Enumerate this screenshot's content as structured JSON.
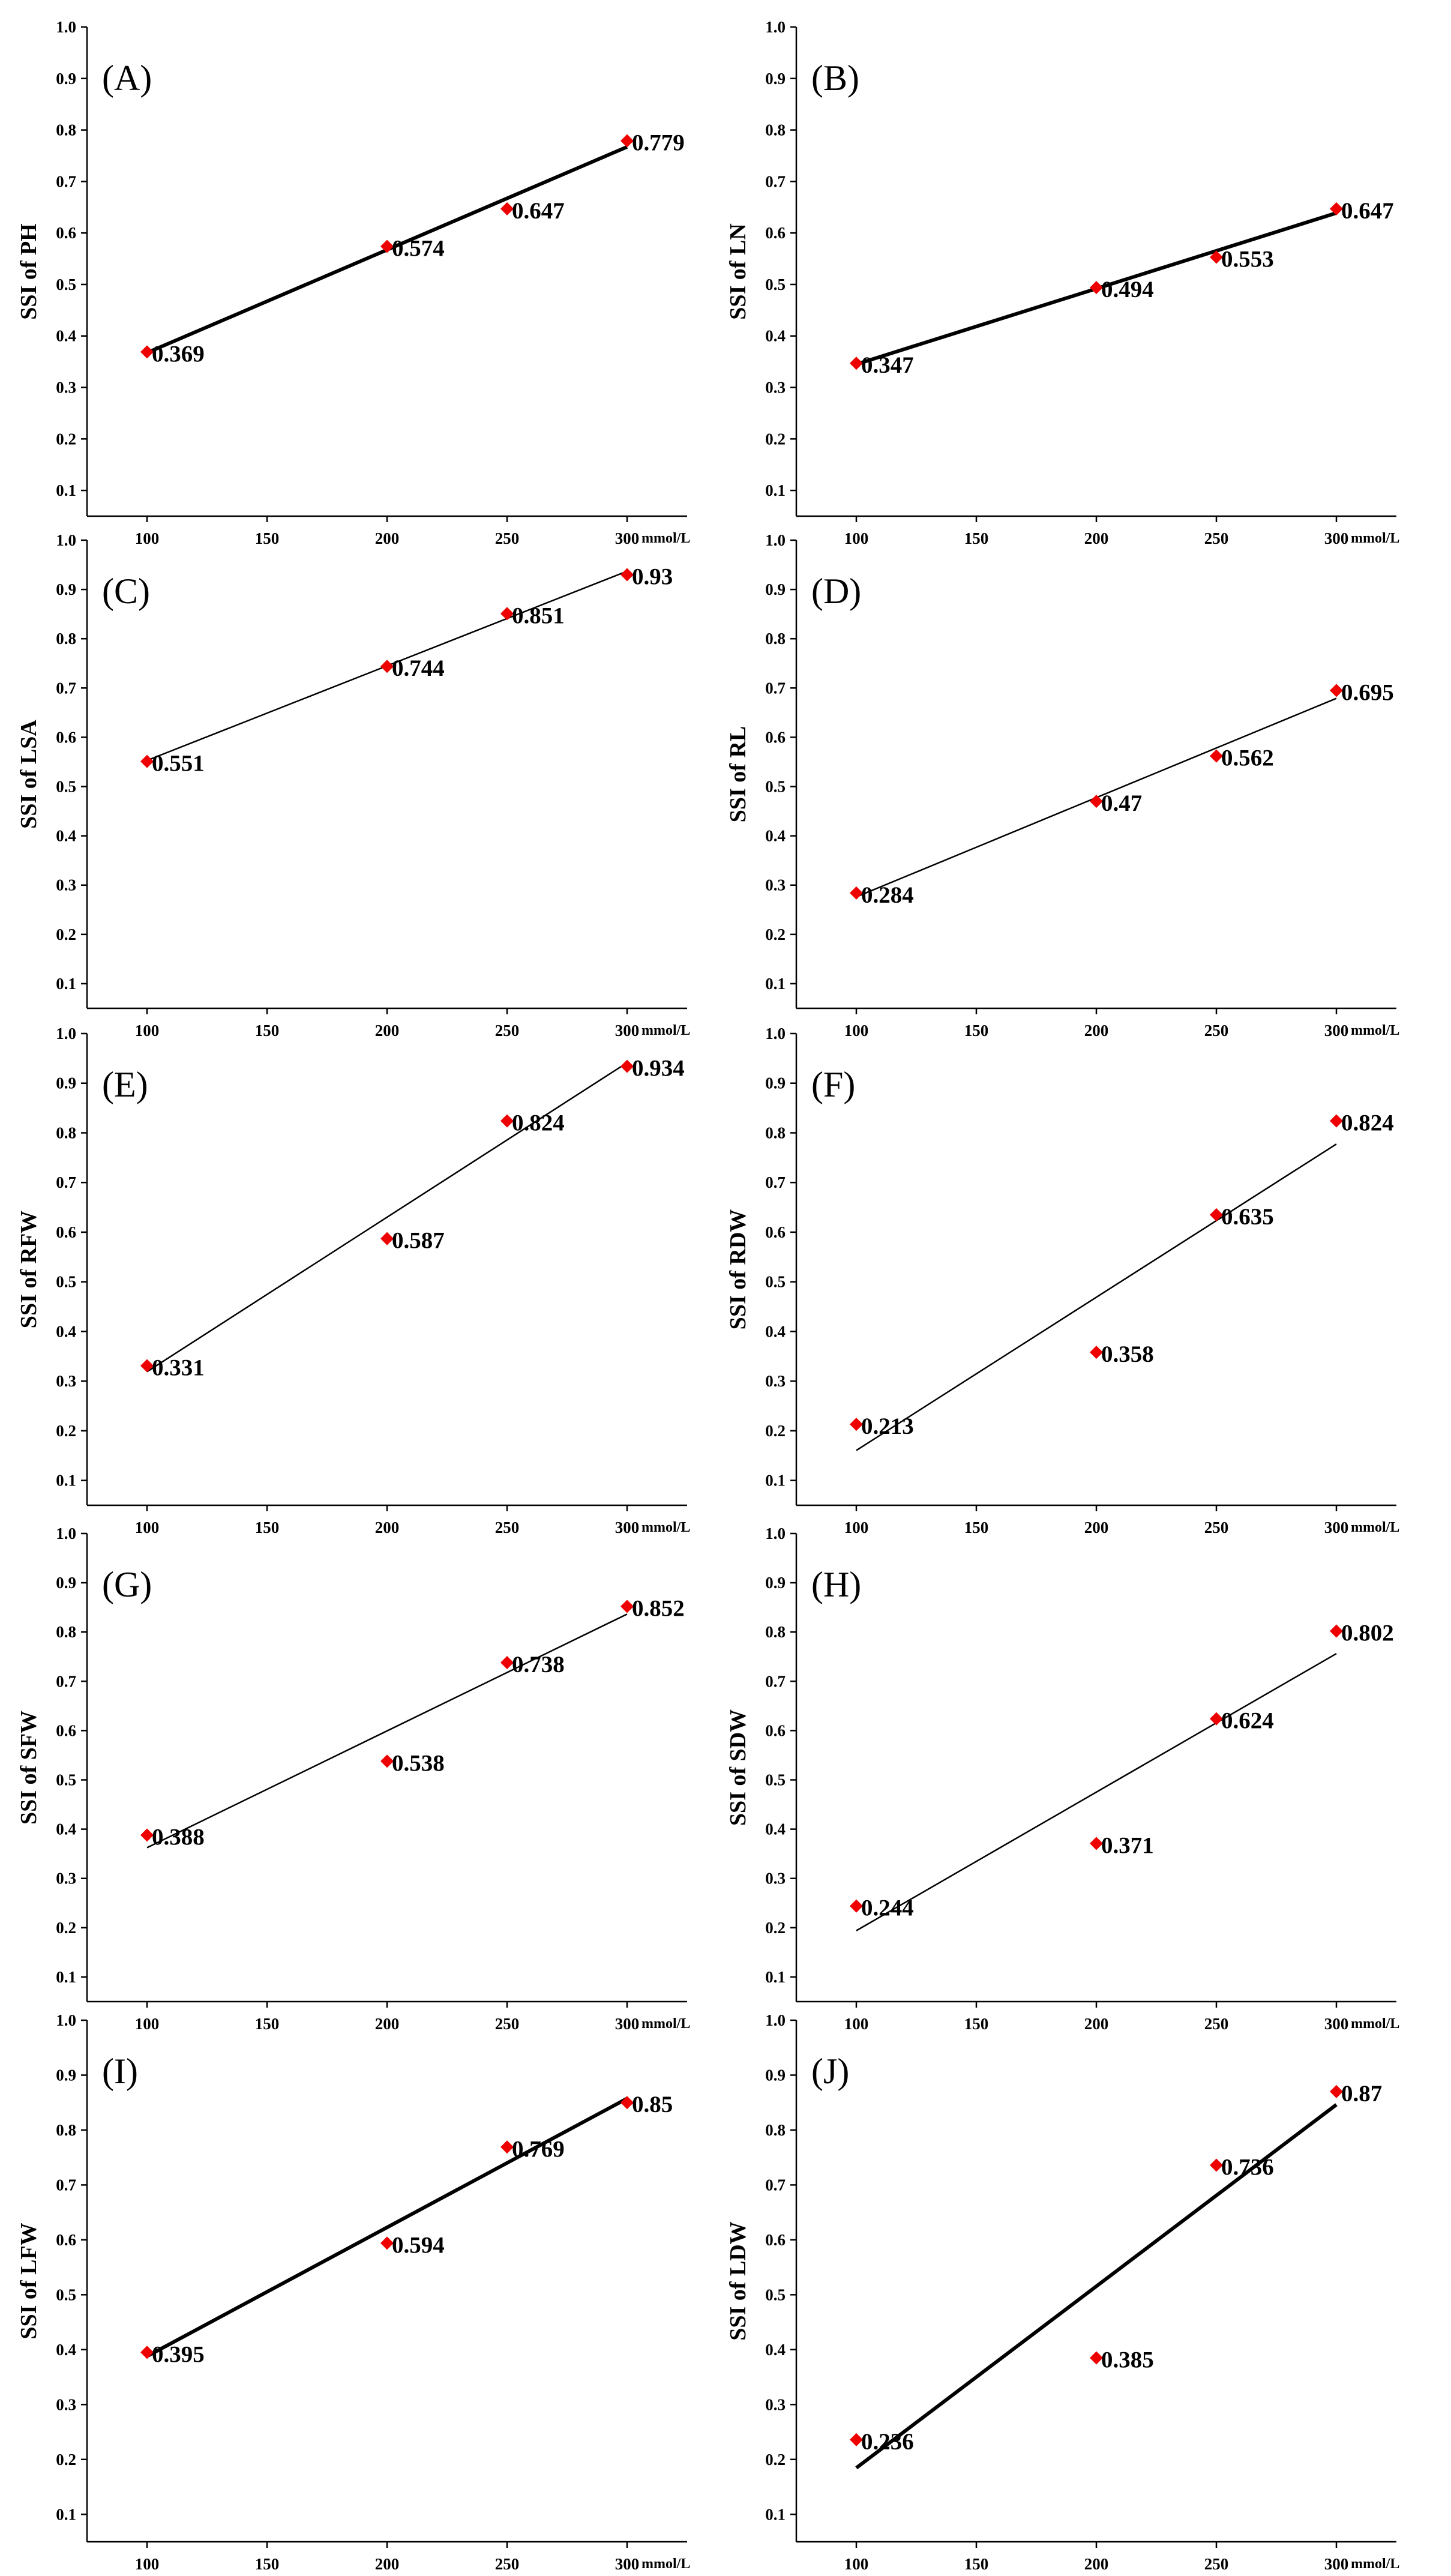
{
  "chart_data": [
    {
      "type": "scatter",
      "panel": "(A)",
      "ylabel": "SSI of PH",
      "x_unit": "mmol/L",
      "x": [
        100,
        200,
        250,
        300
      ],
      "values": [
        0.369,
        0.574,
        0.647,
        0.779
      ],
      "value_labels": [
        "0.369",
        "0.574",
        "0.647",
        "0.779"
      ],
      "trendline": {
        "type": "linear",
        "thick": true
      },
      "xticks": [
        "100",
        "150",
        "200",
        "250",
        "300"
      ],
      "yticks": [
        "1.0",
        "0.9",
        "0.8",
        "0.7",
        "0.6",
        "0.5",
        "0.4",
        "0.3",
        "0.2",
        "0.1"
      ],
      "xlim": [
        75,
        325
      ],
      "ylim": [
        0.05,
        1.0
      ]
    },
    {
      "type": "scatter",
      "panel": "(B)",
      "ylabel": "SSI of LN",
      "x_unit": "mmol/L",
      "x": [
        100,
        200,
        250,
        300
      ],
      "values": [
        0.347,
        0.494,
        0.553,
        0.647
      ],
      "value_labels": [
        "0.347",
        "0.494",
        "0.553",
        "0.647"
      ],
      "trendline": {
        "type": "linear",
        "thick": true
      },
      "xticks": [
        "100",
        "150",
        "200",
        "250",
        "300"
      ],
      "yticks": [
        "1.0",
        "0.9",
        "0.8",
        "0.7",
        "0.6",
        "0.5",
        "0.4",
        "0.3",
        "0.2",
        "0.1"
      ],
      "xlim": [
        75,
        325
      ],
      "ylim": [
        0.05,
        1.0
      ]
    },
    {
      "type": "scatter",
      "panel": "(C)",
      "ylabel": "SSI of LSA",
      "x_unit": "mmol/L",
      "x": [
        100,
        200,
        250,
        300
      ],
      "values": [
        0.551,
        0.744,
        0.851,
        0.93
      ],
      "value_labels": [
        "0.551",
        "0.744",
        "0.851",
        "0.93"
      ],
      "trendline": {
        "type": "linear",
        "thick": false
      },
      "xticks": [
        "100",
        "150",
        "200",
        "250",
        "300"
      ],
      "yticks": [
        "1.0",
        "0.9",
        "0.8",
        "0.7",
        "0.6",
        "0.5",
        "0.4",
        "0.3",
        "0.2",
        "0.1"
      ],
      "xlim": [
        75,
        325
      ],
      "ylim": [
        0.05,
        1.0
      ]
    },
    {
      "type": "scatter",
      "panel": "(D)",
      "ylabel": "SSI of RL",
      "x_unit": "mmol/L",
      "x": [
        100,
        200,
        250,
        300
      ],
      "values": [
        0.284,
        0.47,
        0.562,
        0.695
      ],
      "value_labels": [
        "0.284",
        "0.47",
        "0.562",
        "0.695"
      ],
      "trendline": {
        "type": "linear",
        "thick": false
      },
      "xticks": [
        "100",
        "150",
        "200",
        "250",
        "300"
      ],
      "yticks": [
        "1.0",
        "0.9",
        "0.8",
        "0.7",
        "0.6",
        "0.5",
        "0.4",
        "0.3",
        "0.2",
        "0.1"
      ],
      "xlim": [
        75,
        325
      ],
      "ylim": [
        0.05,
        1.0
      ]
    },
    {
      "type": "scatter",
      "panel": "(E)",
      "ylabel": "SSI of RFW",
      "x_unit": "mmol/L",
      "x": [
        100,
        200,
        250,
        300
      ],
      "values": [
        0.331,
        0.587,
        0.824,
        0.934
      ],
      "value_labels": [
        "0.331",
        "0.587",
        "0.824",
        "0.934"
      ],
      "trendline": {
        "type": "linear",
        "thick": false
      },
      "xticks": [
        "100",
        "150",
        "200",
        "250",
        "300"
      ],
      "yticks": [
        "1.0",
        "0.9",
        "0.8",
        "0.7",
        "0.6",
        "0.5",
        "0.4",
        "0.3",
        "0.2",
        "0.1"
      ],
      "xlim": [
        75,
        325
      ],
      "ylim": [
        0.05,
        1.0
      ]
    },
    {
      "type": "scatter",
      "panel": "(F)",
      "ylabel": "SSI of RDW",
      "x_unit": "mmol/L",
      "x": [
        100,
        200,
        250,
        300
      ],
      "values": [
        0.213,
        0.358,
        0.635,
        0.824
      ],
      "value_labels": [
        "0.213",
        "0.358",
        "0.635",
        "0.824"
      ],
      "trendline": {
        "type": "linear",
        "thick": false
      },
      "xticks": [
        "100",
        "150",
        "200",
        "250",
        "300"
      ],
      "yticks": [
        "1.0",
        "0.9",
        "0.8",
        "0.7",
        "0.6",
        "0.5",
        "0.4",
        "0.3",
        "0.2",
        "0.1"
      ],
      "xlim": [
        75,
        325
      ],
      "ylim": [
        0.05,
        1.0
      ]
    },
    {
      "type": "scatter",
      "panel": "(G)",
      "ylabel": "SSI of  SFW",
      "x_unit": "mmol/L",
      "x": [
        100,
        200,
        250,
        300
      ],
      "values": [
        0.388,
        0.538,
        0.738,
        0.852
      ],
      "value_labels": [
        "0.388",
        "0.538",
        "0.738",
        "0.852"
      ],
      "trendline": {
        "type": "linear",
        "thick": false
      },
      "xticks": [
        "100",
        "150",
        "200",
        "250",
        "300"
      ],
      "yticks": [
        "1.0",
        "0.9",
        "0.8",
        "0.7",
        "0.6",
        "0.5",
        "0.4",
        "0.3",
        "0.2",
        "0.1"
      ],
      "xlim": [
        75,
        325
      ],
      "ylim": [
        0.05,
        1.0
      ]
    },
    {
      "type": "scatter",
      "panel": "(H)",
      "ylabel": "SSI of  SDW",
      "x_unit": "mmol/L",
      "x": [
        100,
        200,
        250,
        300
      ],
      "values": [
        0.244,
        0.371,
        0.624,
        0.802
      ],
      "value_labels": [
        "0.244",
        "0.371",
        "0.624",
        "0.802"
      ],
      "trendline": {
        "type": "linear",
        "thick": false
      },
      "xticks": [
        "100",
        "150",
        "200",
        "250",
        "300"
      ],
      "yticks": [
        "1.0",
        "0.9",
        "0.8",
        "0.7",
        "0.6",
        "0.5",
        "0.4",
        "0.3",
        "0.2",
        "0.1"
      ],
      "xlim": [
        75,
        325
      ],
      "ylim": [
        0.05,
        1.0
      ]
    },
    {
      "type": "scatter",
      "panel": "(I)",
      "ylabel": "SSI of LFW",
      "x_unit": "mmol/L",
      "x": [
        100,
        200,
        250,
        300
      ],
      "values": [
        0.395,
        0.594,
        0.769,
        0.85
      ],
      "value_labels": [
        "0.395",
        "0.594",
        "0.769",
        "0.85"
      ],
      "trendline": {
        "type": "linear",
        "thick": true
      },
      "xticks": [
        "100",
        "150",
        "200",
        "250",
        "300"
      ],
      "yticks": [
        "1.0",
        "0.9",
        "0.8",
        "0.7",
        "0.6",
        "0.5",
        "0.4",
        "0.3",
        "0.2",
        "0.1"
      ],
      "xlim": [
        75,
        325
      ],
      "ylim": [
        0.05,
        1.0
      ]
    },
    {
      "type": "scatter",
      "panel": "(J)",
      "ylabel": "SSI of LDW",
      "x_unit": "mmol/L",
      "x": [
        100,
        200,
        250,
        300
      ],
      "values": [
        0.236,
        0.385,
        0.736,
        0.87
      ],
      "value_labels": [
        "0.236",
        "0.385",
        "0.736",
        "0.87"
      ],
      "trendline": {
        "type": "linear",
        "thick": true
      },
      "xticks": [
        "100",
        "150",
        "200",
        "250",
        "300"
      ],
      "yticks": [
        "1.0",
        "0.9",
        "0.8",
        "0.7",
        "0.6",
        "0.5",
        "0.4",
        "0.3",
        "0.2",
        "0.1"
      ],
      "xlim": [
        75,
        325
      ],
      "ylim": [
        0.05,
        1.0
      ]
    }
  ]
}
